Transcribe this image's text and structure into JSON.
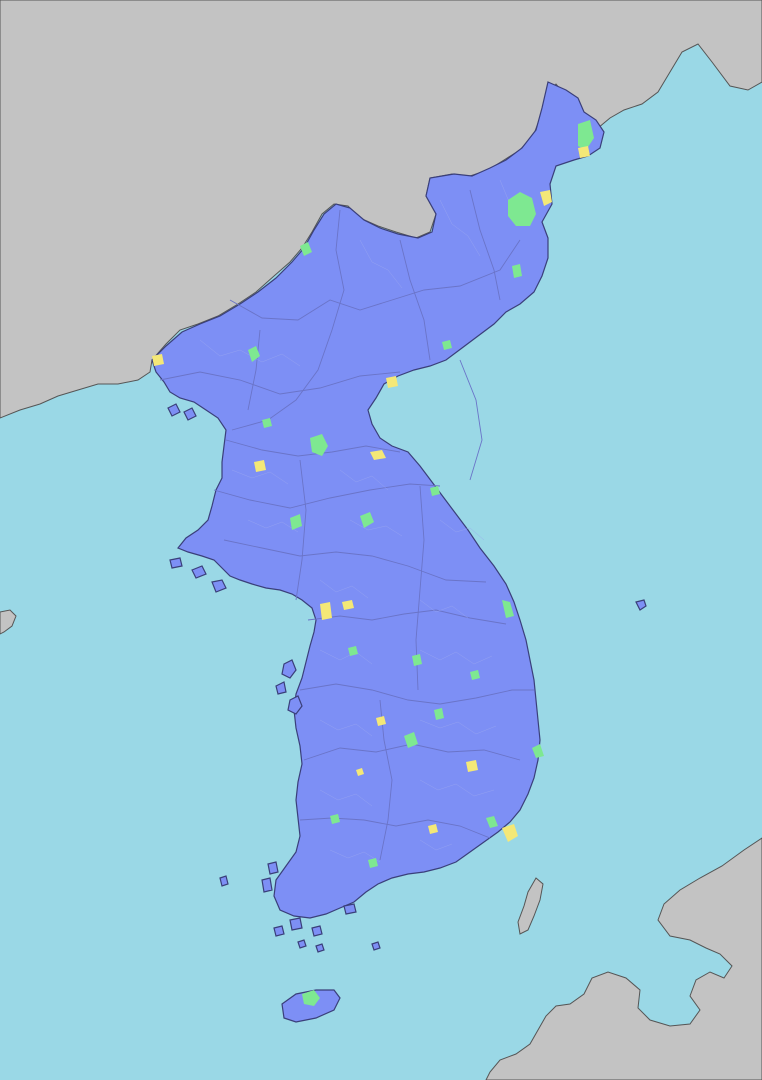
{
  "map": {
    "colors": {
      "sea": "#9ad8e6",
      "neighbor_land": "#c3c3c3",
      "peninsula": "#7d8ff5",
      "region_green": "#7ee891",
      "region_yellow": "#f4e877",
      "border": "#3a3f7a"
    },
    "layers": [
      "sea",
      "neighbor-land",
      "peninsula",
      "district-boundaries",
      "highlighted-regions"
    ],
    "highlight_categories": [
      {
        "color": "#7ee891"
      },
      {
        "color": "#f4e877"
      }
    ]
  }
}
